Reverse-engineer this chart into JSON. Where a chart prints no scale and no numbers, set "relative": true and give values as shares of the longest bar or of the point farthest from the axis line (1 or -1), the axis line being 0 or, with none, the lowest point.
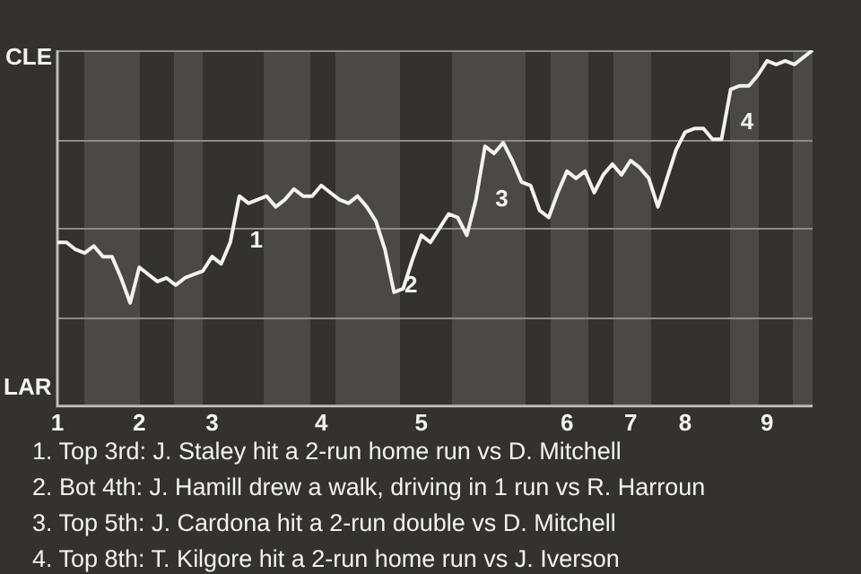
{
  "chart_data": {
    "type": "line",
    "relative": true,
    "categories": [
      "1",
      null,
      null,
      null,
      null,
      null,
      null,
      null,
      null,
      "2",
      null,
      null,
      null,
      null,
      null,
      null,
      null,
      "3",
      null,
      null,
      null,
      null,
      null,
      null,
      null,
      null,
      null,
      null,
      null,
      "4",
      null,
      null,
      null,
      null,
      null,
      null,
      null,
      null,
      null,
      null,
      "5",
      null,
      null,
      null,
      null,
      null,
      null,
      null,
      null,
      null,
      null,
      null,
      null,
      null,
      null,
      null,
      "6",
      null,
      null,
      null,
      null,
      null,
      null,
      "7",
      null,
      null,
      null,
      null,
      null,
      "8",
      null,
      null,
      null,
      null,
      null,
      null,
      null,
      null,
      "9",
      null,
      null,
      null,
      null,
      null
    ],
    "series": [
      {
        "color": "#f2f2f2",
        "values": [
          0.46,
          0.46,
          0.44,
          0.43,
          0.45,
          0.42,
          0.42,
          0.36,
          0.29,
          0.39,
          0.37,
          0.35,
          0.36,
          0.34,
          0.36,
          0.37,
          0.38,
          0.42,
          0.4,
          0.46,
          0.59,
          0.57,
          0.58,
          0.59,
          0.56,
          0.58,
          0.61,
          0.59,
          0.59,
          0.62,
          0.6,
          0.58,
          0.57,
          0.59,
          0.56,
          0.52,
          0.44,
          0.32,
          0.33,
          0.41,
          0.48,
          0.46,
          0.5,
          0.54,
          0.53,
          0.48,
          0.58,
          0.73,
          0.71,
          0.74,
          0.69,
          0.63,
          0.62,
          0.55,
          0.53,
          0.6,
          0.66,
          0.64,
          0.66,
          0.6,
          0.65,
          0.68,
          0.65,
          0.69,
          0.67,
          0.64,
          0.56,
          0.64,
          0.72,
          0.77,
          0.78,
          0.78,
          0.75,
          0.75,
          0.89,
          0.9,
          0.9,
          0.93,
          0.97,
          0.96,
          0.97,
          0.96,
          0.98,
          1
        ]
      }
    ],
    "grid": "y",
    "marker": "none",
    "line_style": "solid",
    "legend": false,
    "annotations": [
      "CLE",
      "LAR",
      "1",
      "2",
      "3",
      "4",
      "1. Top 3rd: J. Staley hit a 2-run home run vs D. Mitchell",
      "2. Bot 4th: J. Hamill drew a walk, driving in 1 run vs R. Harroun",
      "3. Top 5th: J. Cardona hit a 2-run double vs D. Mitchell",
      "4. Top 8th: T. Kilgore hit a 2-run home run vs J. Iverson"
    ]
  }
}
